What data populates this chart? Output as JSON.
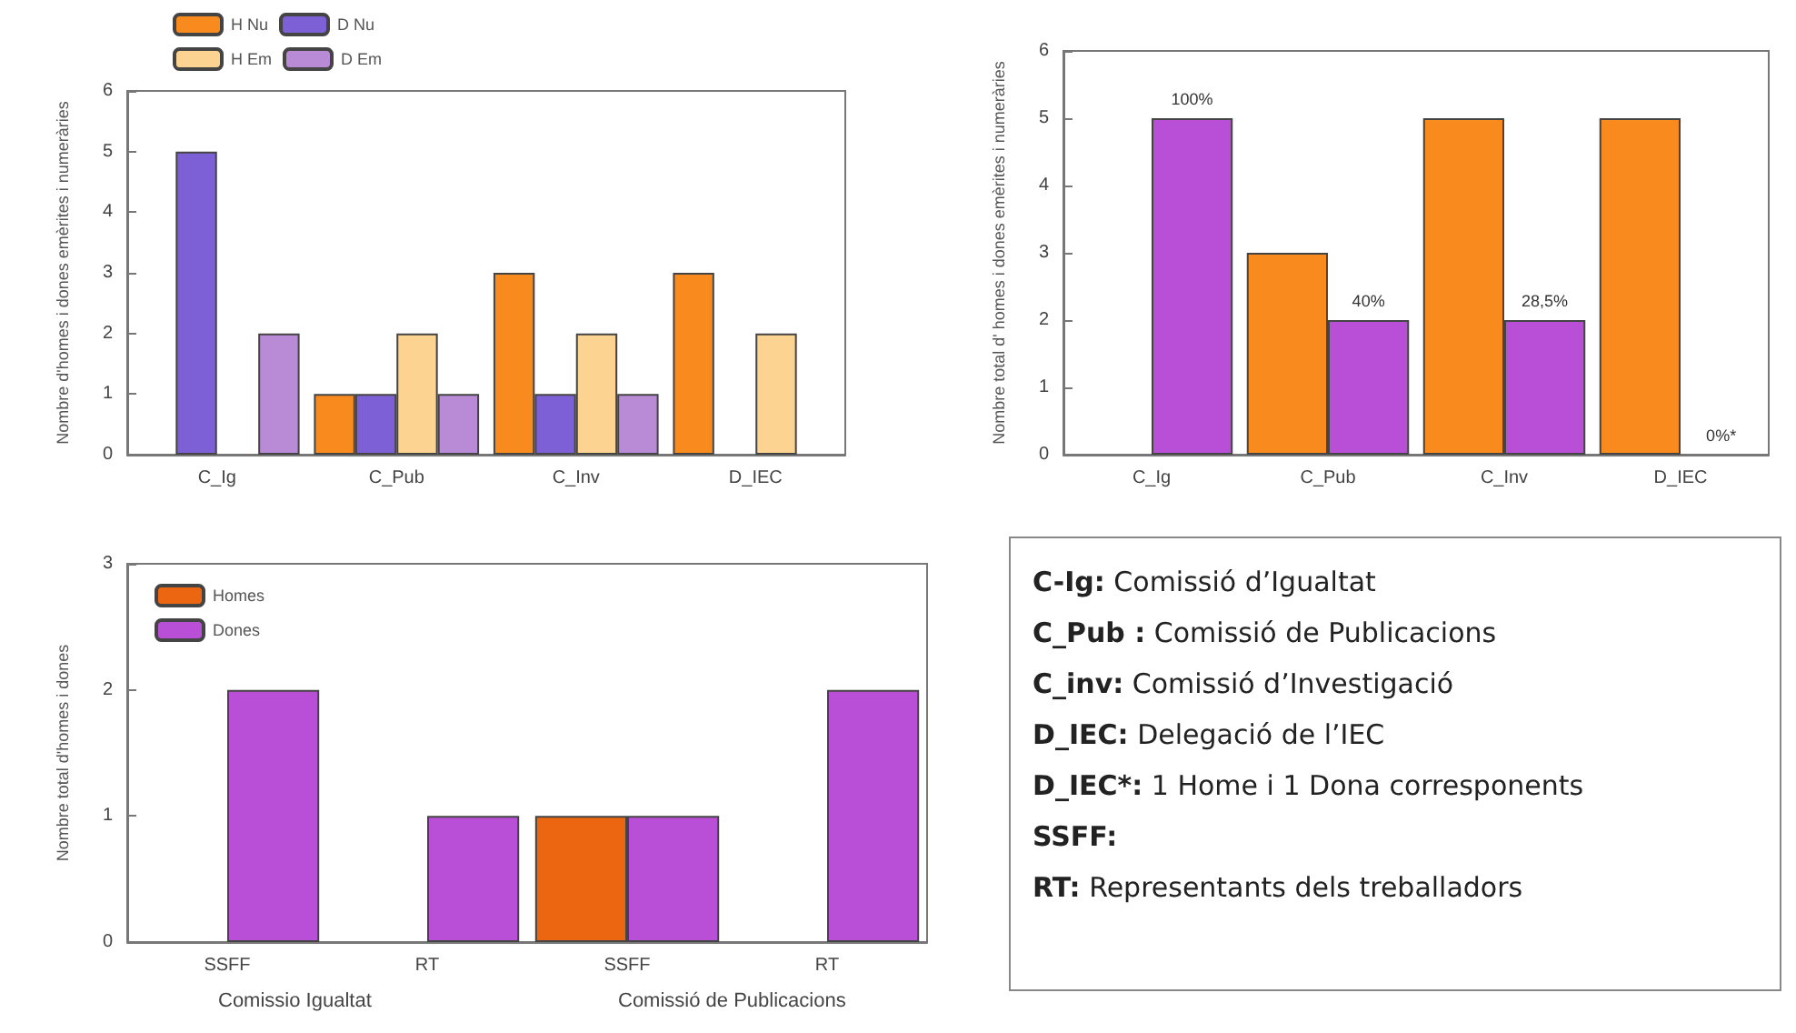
{
  "chart_data": [
    {
      "type": "bar",
      "categories": [
        "C_Ig",
        "C_Pub",
        "C_Inv",
        "D_IEC"
      ],
      "ylabel": "Nombre d'homes i dones emèrites i numeràries",
      "ylim": [
        0,
        6
      ],
      "yticks": [
        0,
        1,
        2,
        3,
        4,
        5,
        6
      ],
      "grid": false,
      "legend": "top left",
      "series": [
        {
          "name": "H Nu",
          "color": "#f98b1e",
          "values": [
            null,
            1,
            3,
            3
          ]
        },
        {
          "name": "D Nu",
          "color": "#7d5fd6",
          "values": [
            5,
            1,
            1,
            null
          ]
        },
        {
          "name": "H Em",
          "color": "#fdd391",
          "values": [
            null,
            2,
            2,
            2
          ]
        },
        {
          "name": "D Em",
          "color": "#b98bd6",
          "values": [
            2,
            1,
            1,
            null
          ]
        }
      ]
    },
    {
      "type": "bar",
      "categories": [
        "C_Ig",
        "C_Pub",
        "C_Inv",
        "D_IEC"
      ],
      "ylabel": "Nombre total d' homes i dones emèrites i numeràries",
      "ylim": [
        0,
        6
      ],
      "yticks": [
        0,
        1,
        2,
        3,
        4,
        5,
        6
      ],
      "grid": false,
      "series": [
        {
          "color": "#f98b1e",
          "values": [
            null,
            3,
            5,
            5
          ]
        },
        {
          "color": "#b94fd6",
          "values": [
            5,
            2,
            2,
            null
          ]
        }
      ],
      "annotations": [
        {
          "text": "100%",
          "x": "C_Ig",
          "y": 5
        },
        {
          "text": "40%",
          "x": "C_Pub",
          "y": 2
        },
        {
          "text": "28,5%",
          "x": "C_Inv",
          "y": 2
        },
        {
          "text": "0%*",
          "x": "D_IEC",
          "y": 0
        }
      ]
    },
    {
      "type": "bar",
      "categories": [
        "SSFF",
        "RT",
        "SSFF",
        "RT"
      ],
      "ylabel": "Nombre total d'homes i dones",
      "ylim": [
        0,
        3
      ],
      "yticks": [
        0,
        1,
        2,
        3
      ],
      "grid": false,
      "legend": "top left",
      "annotations": [
        "Comissio Igualtat",
        "Comissió de Publicacions"
      ],
      "series": [
        {
          "name": "Homes",
          "color": "#ec6611",
          "values": [
            null,
            null,
            1,
            null
          ]
        },
        {
          "name": "Dones",
          "color": "#b94fd6",
          "values": [
            2,
            1,
            1,
            2
          ]
        }
      ]
    },
    {
      "type": "other",
      "annotations": [
        "C-Ig: Comissió d’Igualtat",
        "C_Pub : Comissió de Publicacions",
        "C_inv: Comissió d’Investigació",
        "D_IEC: Delegació de l’IEC",
        "D_IEC*: 1 Home i 1 Dona corresponents",
        "SSFF:",
        "RT: Representants dels treballadors"
      ]
    }
  ]
}
